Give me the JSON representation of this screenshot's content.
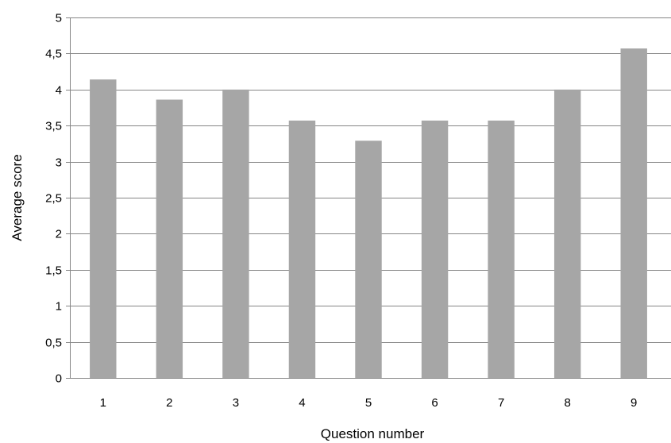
{
  "chart_data": {
    "type": "bar",
    "title": "",
    "xlabel": "Question number",
    "ylabel": "Average score",
    "categories": [
      "1",
      "2",
      "3",
      "4",
      "5",
      "6",
      "7",
      "8",
      "9"
    ],
    "values": [
      4.14,
      3.86,
      4.0,
      3.57,
      3.29,
      3.57,
      3.57,
      4.0,
      4.57
    ],
    "ylim": [
      0,
      5
    ],
    "yticks": [
      0,
      0.5,
      1,
      1.5,
      2,
      2.5,
      3,
      3.5,
      4,
      4.5,
      5
    ],
    "ytick_labels": [
      "0",
      "0,5",
      "1",
      "1,5",
      "2",
      "2,5",
      "3",
      "3,5",
      "4",
      "4,5",
      "5"
    ],
    "grid": true,
    "legend": false,
    "bar_color": "#a6a6a6",
    "grid_color": "#868686"
  }
}
